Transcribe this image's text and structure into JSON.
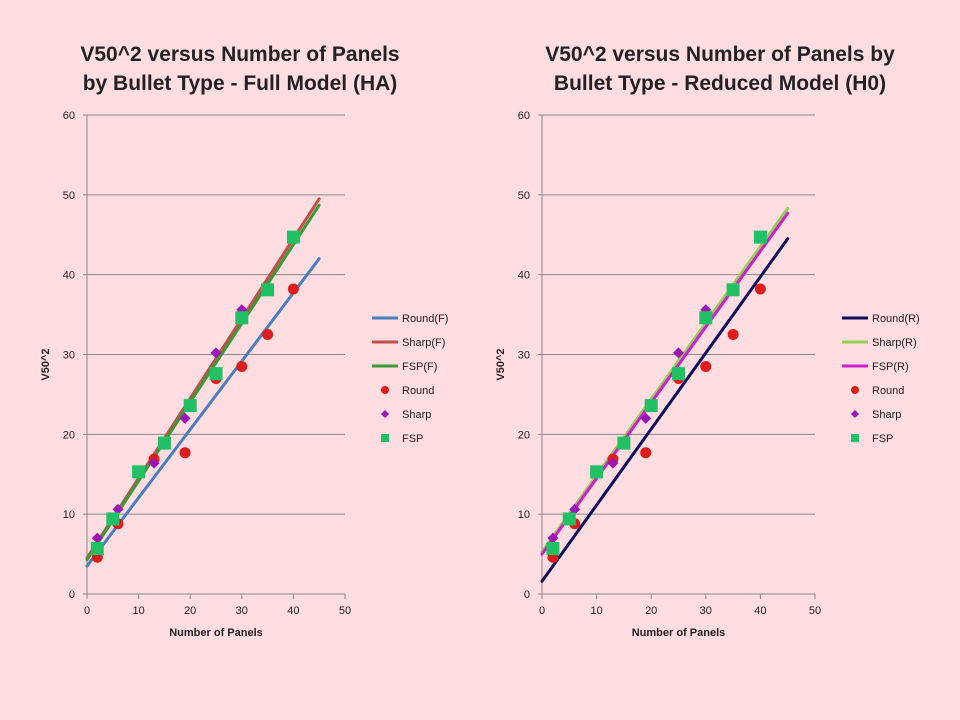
{
  "chart_data": [
    {
      "type": "scatter",
      "title": [
        "V50^2 versus Number of Panels",
        "by Bullet Type - Full Model (HA)"
      ],
      "xlabel": "Number of Panels",
      "ylabel": "V50^2",
      "xlim": [
        0,
        50
      ],
      "ylim": [
        0,
        60
      ],
      "x_ticks": [
        "0",
        "10",
        "20",
        "30",
        "40",
        "50"
      ],
      "y_ticks": [
        "0",
        "10",
        "20",
        "30",
        "40",
        "50",
        "60"
      ],
      "grid": "horizontal",
      "legend_position": "right",
      "lines": [
        {
          "name": "Round(F)",
          "color": "#4a7ebf",
          "x": [
            0,
            45
          ],
          "y": [
            3.5,
            42.0
          ]
        },
        {
          "name": "Sharp(F)",
          "color": "#c0504d",
          "x": [
            0,
            45
          ],
          "y": [
            4.5,
            49.5
          ]
        },
        {
          "name": "FSP(F)",
          "color": "#3a9a35",
          "x": [
            0,
            45
          ],
          "y": [
            4.3,
            48.7
          ]
        }
      ],
      "scatter": [
        {
          "name": "Round",
          "marker": "circle",
          "color": "#dd1c1c",
          "x": [
            2,
            6,
            13,
            19,
            25,
            30,
            35,
            40
          ],
          "y": [
            4.6,
            8.8,
            16.9,
            17.7,
            27.0,
            28.5,
            32.5,
            38.2
          ]
        },
        {
          "name": "Sharp",
          "marker": "diamond",
          "color": "#9b17b5",
          "x": [
            2,
            6,
            13,
            19,
            25,
            30
          ],
          "y": [
            7.0,
            10.6,
            16.4,
            22.0,
            30.2,
            35.6
          ]
        },
        {
          "name": "FSP",
          "marker": "square",
          "color": "#22c064",
          "x": [
            2,
            5,
            10,
            15,
            20,
            25,
            30,
            35,
            40
          ],
          "y": [
            5.7,
            9.4,
            15.3,
            18.9,
            23.6,
            27.6,
            34.6,
            38.1,
            44.7
          ]
        }
      ]
    },
    {
      "type": "scatter",
      "title": [
        "V50^2 versus Number of Panels by",
        "Bullet Type - Reduced Model (H0)"
      ],
      "xlabel": "Number of Panels",
      "ylabel": "V50^2",
      "xlim": [
        0,
        50
      ],
      "ylim": [
        0,
        60
      ],
      "x_ticks": [
        "0",
        "10",
        "20",
        "30",
        "40",
        "50"
      ],
      "y_ticks": [
        "0",
        "10",
        "20",
        "30",
        "40",
        "50",
        "60"
      ],
      "grid": "horizontal",
      "legend_position": "right",
      "lines": [
        {
          "name": "Round(R)",
          "color": "#0c0d5c",
          "x": [
            0,
            45
          ],
          "y": [
            1.6,
            44.5
          ]
        },
        {
          "name": "Sharp(R)",
          "color": "#92d050",
          "x": [
            0,
            45
          ],
          "y": [
            5.3,
            48.3
          ]
        },
        {
          "name": "FSP(R)",
          "color": "#cc1fd0",
          "x": [
            0,
            45
          ],
          "y": [
            5.0,
            47.7
          ]
        }
      ],
      "scatter": [
        {
          "name": "Round",
          "marker": "circle",
          "color": "#dd1c1c",
          "x": [
            2,
            6,
            13,
            19,
            25,
            30,
            35,
            40
          ],
          "y": [
            4.6,
            8.8,
            16.9,
            17.7,
            27.0,
            28.5,
            32.5,
            38.2
          ]
        },
        {
          "name": "Sharp",
          "marker": "diamond",
          "color": "#9b17b5",
          "x": [
            2,
            6,
            13,
            19,
            25,
            30
          ],
          "y": [
            7.0,
            10.6,
            16.4,
            22.0,
            30.2,
            35.6
          ]
        },
        {
          "name": "FSP",
          "marker": "square",
          "color": "#22c064",
          "x": [
            2,
            5,
            10,
            15,
            20,
            25,
            30,
            35,
            40
          ],
          "y": [
            5.7,
            9.4,
            15.3,
            18.9,
            23.6,
            27.6,
            34.6,
            38.1,
            44.7
          ]
        }
      ]
    }
  ]
}
